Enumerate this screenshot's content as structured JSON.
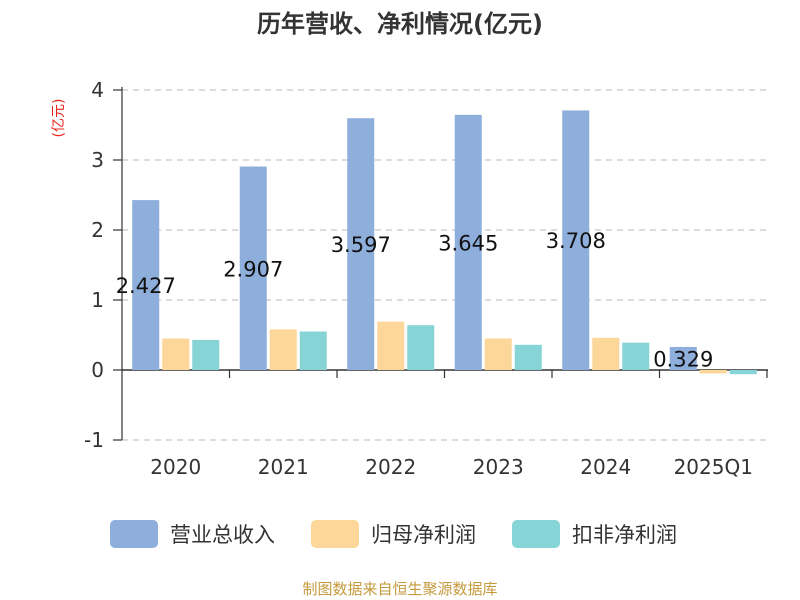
{
  "chart_data": {
    "type": "bar",
    "title": "历年营收、净利情况(亿元)",
    "ylabel": "(亿元)",
    "categories": [
      "2020",
      "2021",
      "2022",
      "2023",
      "2024",
      "2025Q1"
    ],
    "ylim": [
      -1,
      4
    ],
    "yticks": [
      "4",
      "3",
      "2",
      "1",
      "0",
      "-1"
    ],
    "grid": true,
    "legend_position": "bottom",
    "series": [
      {
        "name": "营业总收入",
        "color": "#8eaedb",
        "values": [
          2.427,
          2.907,
          3.597,
          3.645,
          3.708,
          0.329
        ],
        "labels": [
          "2.427",
          "2.907",
          "3.597",
          "3.645",
          "3.708",
          "0.329"
        ]
      },
      {
        "name": "归母净利润",
        "color": "#fdd699",
        "values": [
          0.45,
          0.58,
          0.69,
          0.45,
          0.46,
          -0.05
        ]
      },
      {
        "name": "扣非净利润",
        "color": "#87d4d6",
        "values": [
          0.43,
          0.55,
          0.64,
          0.36,
          0.39,
          -0.06
        ]
      }
    ]
  },
  "footer": {
    "source": "制图数据来自恒生聚源数据库"
  }
}
